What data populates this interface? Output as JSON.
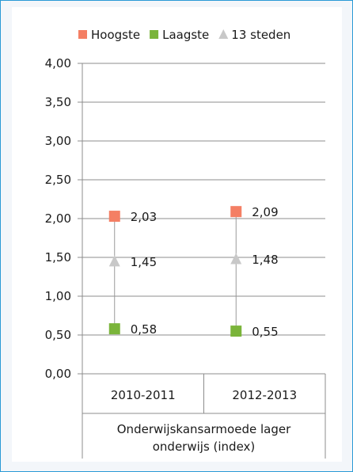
{
  "chart_data": {
    "type": "scatter",
    "categories": [
      "2010-2011",
      "2012-2013"
    ],
    "group_label_lines": [
      "Onderwijskansarmoede lager",
      "onderwijs (index)"
    ],
    "ylim": [
      0,
      4
    ],
    "yticks": [
      "0,00",
      "0,50",
      "1,00",
      "1,50",
      "2,00",
      "2,50",
      "3,00",
      "3,50",
      "4,00"
    ],
    "grid": true,
    "legend_placement": "top-center",
    "series": [
      {
        "name": "Hoogste",
        "marker": "square",
        "color": "#f47f64",
        "values": [
          2.03,
          2.09
        ],
        "labels": [
          "2,03",
          "2,09"
        ]
      },
      {
        "name": "Laagste",
        "marker": "square",
        "color": "#7ab43a",
        "values": [
          0.58,
          0.55
        ],
        "labels": [
          "0,58",
          "0,55"
        ]
      },
      {
        "name": "13 steden",
        "marker": "triangle",
        "color": "#c8c8c8",
        "values": [
          1.45,
          1.48
        ],
        "labels": [
          "1,45",
          "1,48"
        ]
      }
    ]
  }
}
